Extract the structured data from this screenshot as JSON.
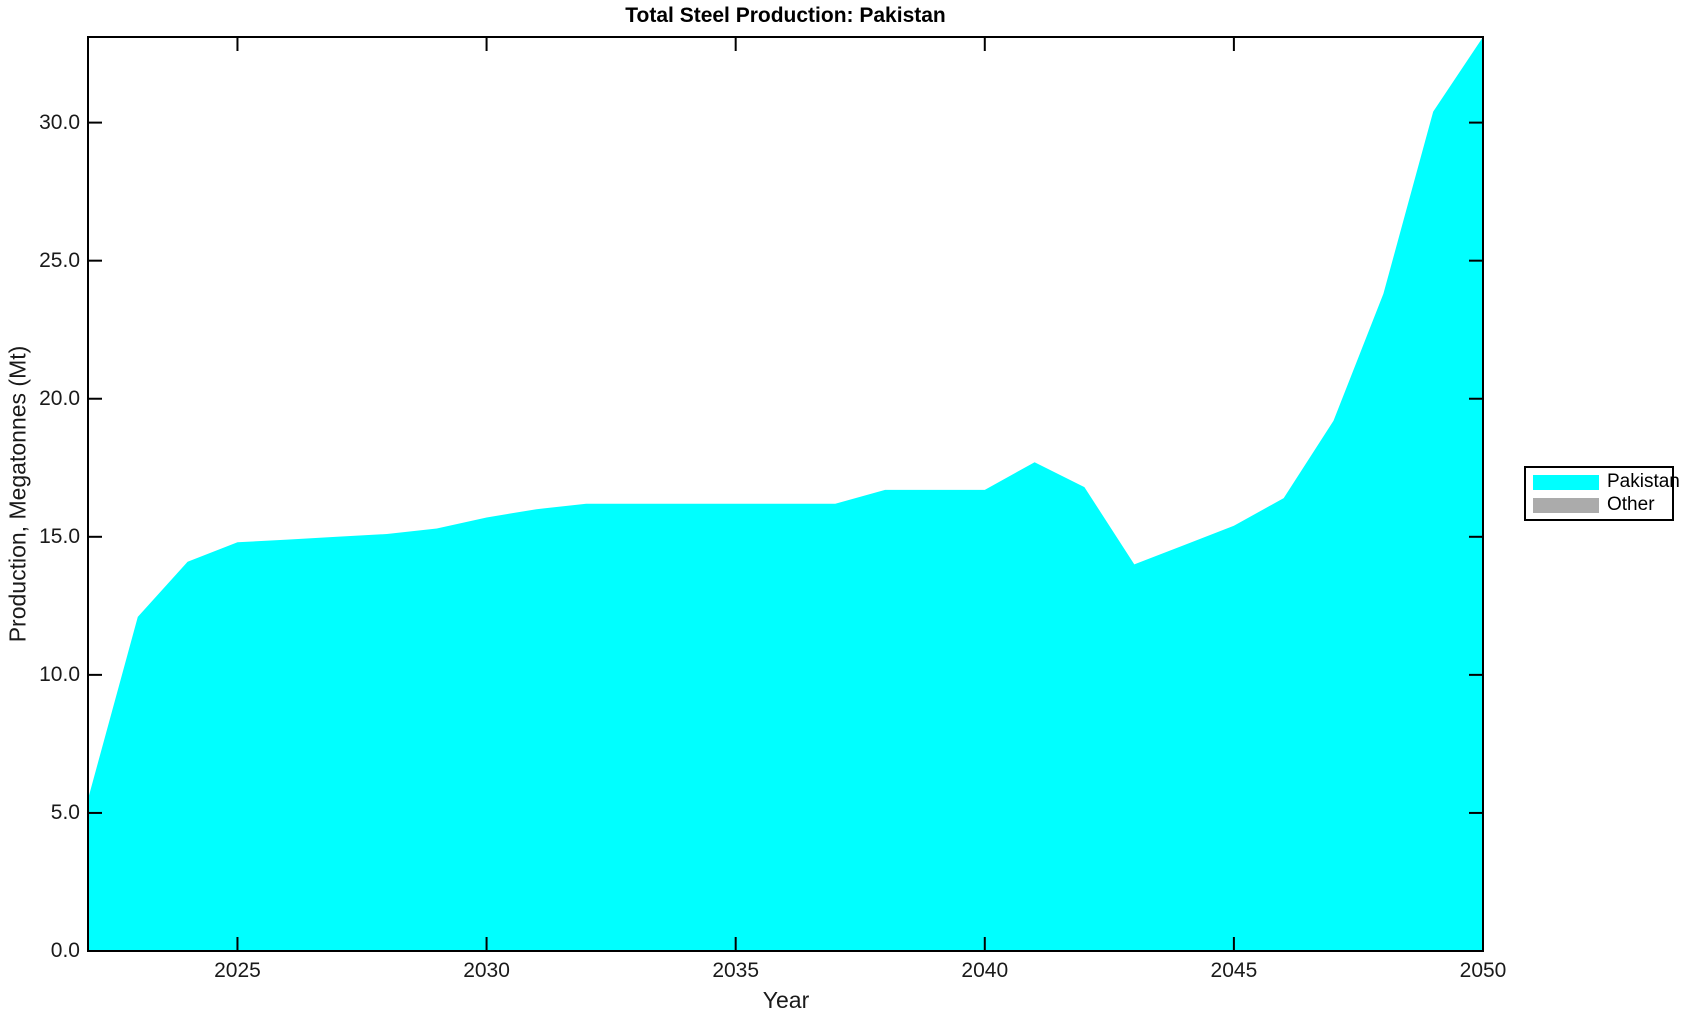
{
  "chart_data": {
    "type": "area",
    "title": "Total Steel Production: Pakistan",
    "xlabel": "Year",
    "ylabel": "Production, Megatonnes (Mt)",
    "x": [
      2022,
      2023,
      2024,
      2025,
      2026,
      2027,
      2028,
      2029,
      2030,
      2031,
      2032,
      2033,
      2034,
      2035,
      2036,
      2037,
      2038,
      2039,
      2040,
      2041,
      2042,
      2043,
      2044,
      2045,
      2046,
      2047,
      2048,
      2049,
      2050
    ],
    "series": [
      {
        "name": "Pakistan",
        "color": "#00FFFF",
        "values": [
          5.5,
          12.1,
          14.1,
          14.8,
          14.9,
          15.0,
          15.1,
          15.3,
          15.7,
          16.0,
          16.2,
          16.2,
          16.2,
          16.2,
          16.2,
          16.2,
          16.7,
          16.7,
          16.7,
          17.7,
          16.8,
          14.0,
          14.7,
          15.4,
          16.4,
          19.2,
          23.8,
          30.4,
          33.1
        ]
      }
    ],
    "legend": {
      "position": "right-outside",
      "entries": [
        {
          "label": "Pakistan",
          "color": "#00FFFF"
        },
        {
          "label": "Other",
          "color": "#ABABAB"
        }
      ]
    },
    "axes": {
      "xlim": [
        2022,
        2050
      ],
      "ylim": [
        0,
        33.1
      ],
      "xticks": [
        2025,
        2030,
        2035,
        2040,
        2045,
        2050
      ],
      "xtick_labels": [
        "2025",
        "2030",
        "2035",
        "2040",
        "2045",
        "2050"
      ],
      "yticks": [
        0,
        5,
        10,
        15,
        20,
        25,
        30
      ],
      "ytick_labels": [
        "0.0",
        "5.0",
        "10.0",
        "15.0",
        "20.0",
        "25.0",
        "30.0"
      ],
      "grid": false,
      "box": true,
      "tick_direction": "in"
    },
    "colors": {
      "axis": "#000000",
      "background": "#FFFFFF",
      "accent": "#00FFFF"
    }
  }
}
